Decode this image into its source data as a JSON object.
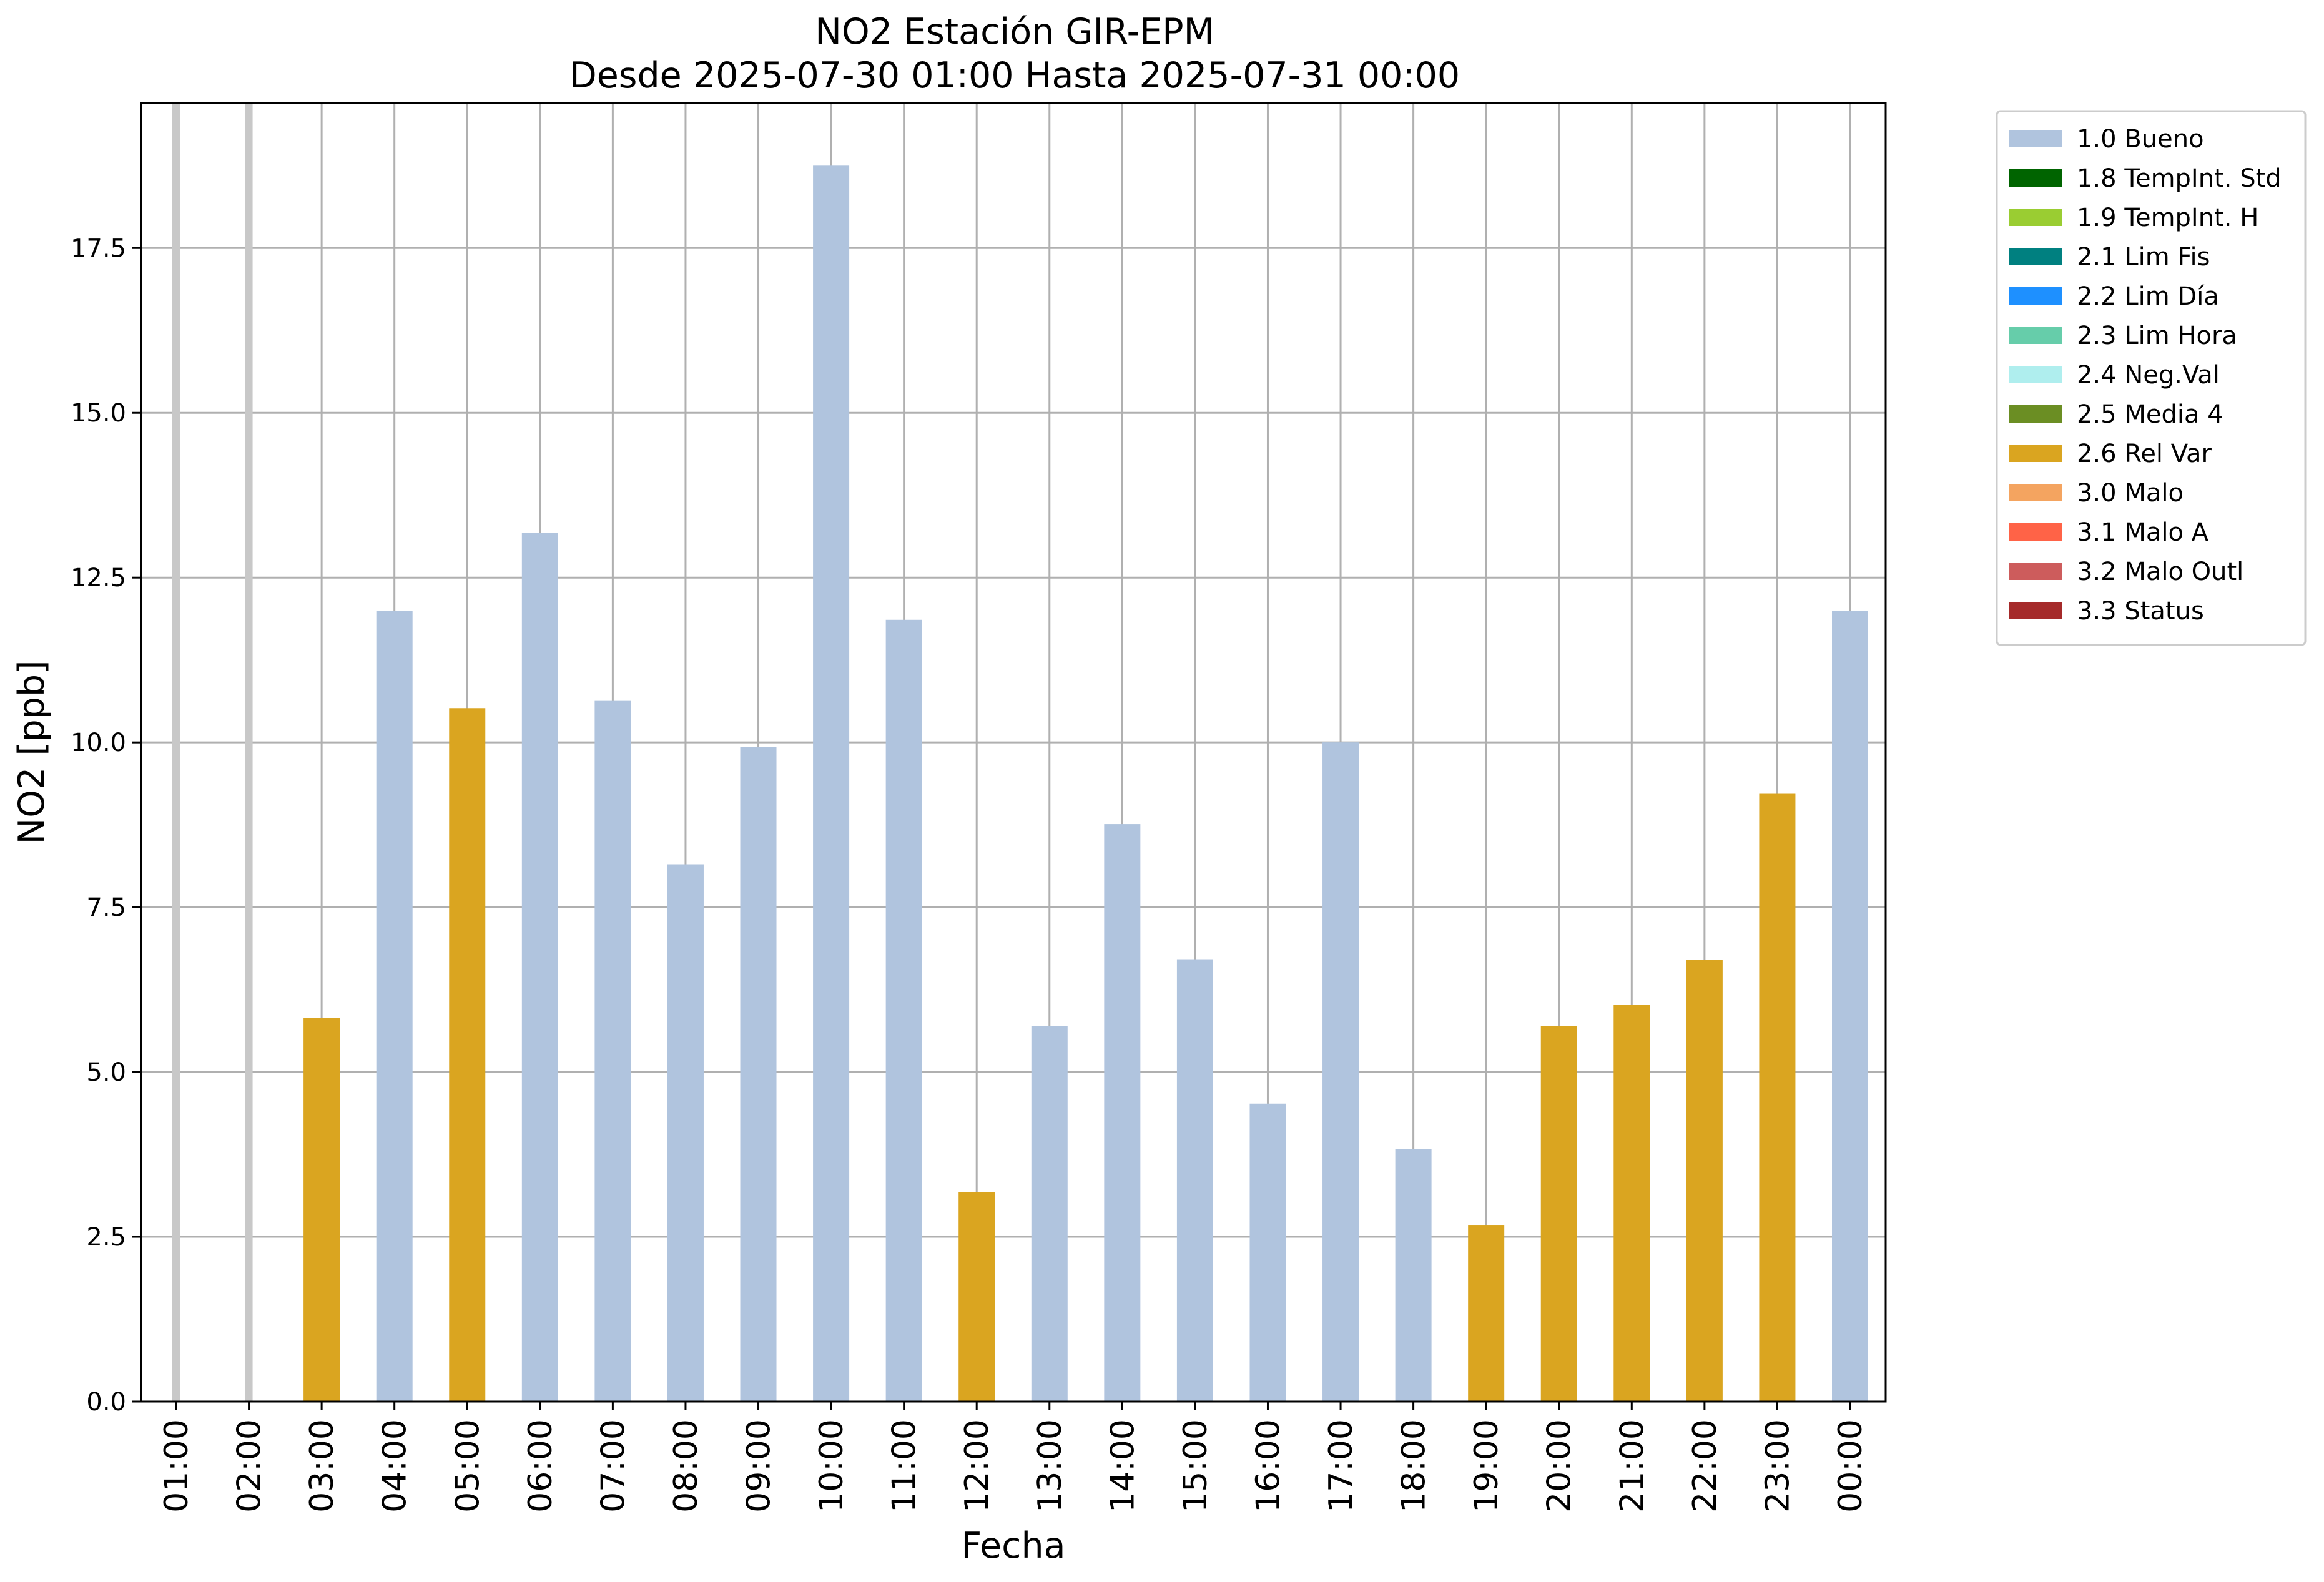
{
  "chart_data": {
    "type": "bar",
    "title": "NO2 Estación GIR-EPM",
    "subtitle": "Desde 2025-07-30 01:00 Hasta 2025-07-31 00:00",
    "xlabel": "Fecha",
    "ylabel": "NO2 [ppb]",
    "ylim": [
      0,
      19.7
    ],
    "yticks": [
      "0.0",
      "2.5",
      "5.0",
      "7.5",
      "10.0",
      "12.5",
      "15.0",
      "17.5"
    ],
    "ytick_values": [
      0,
      2.5,
      5,
      7.5,
      10,
      12.5,
      15,
      17.5
    ],
    "grid": true,
    "legend_position": "outside-top-right",
    "categories": [
      "01:00",
      "02:00",
      "03:00",
      "04:00",
      "05:00",
      "06:00",
      "07:00",
      "08:00",
      "09:00",
      "10:00",
      "11:00",
      "12:00",
      "13:00",
      "14:00",
      "15:00",
      "16:00",
      "17:00",
      "18:00",
      "19:00",
      "20:00",
      "21:00",
      "22:00",
      "23:00",
      "00:00"
    ],
    "values": [
      null,
      null,
      5.82,
      12.0,
      10.52,
      13.18,
      10.63,
      8.15,
      9.93,
      18.75,
      11.86,
      3.18,
      5.7,
      8.76,
      6.71,
      4.52,
      10.0,
      3.83,
      2.68,
      5.7,
      6.02,
      6.7,
      9.22,
      12.0
    ],
    "flags": [
      "missing",
      "missing",
      "2.6 Rel Var",
      "1.0 Bueno",
      "2.6 Rel Var",
      "1.0 Bueno",
      "1.0 Bueno",
      "1.0 Bueno",
      "1.0 Bueno",
      "1.0 Bueno",
      "1.0 Bueno",
      "2.6 Rel Var",
      "1.0 Bueno",
      "1.0 Bueno",
      "1.0 Bueno",
      "1.0 Bueno",
      "1.0 Bueno",
      "1.0 Bueno",
      "2.6 Rel Var",
      "2.6 Rel Var",
      "2.6 Rel Var",
      "2.6 Rel Var",
      "2.6 Rel Var",
      "1.0 Bueno"
    ],
    "missing_marker_color": "#c8c8c8",
    "legend": [
      {
        "label": "1.0 Bueno",
        "color": "#b0c4de"
      },
      {
        "label": "1.8 TempInt. Std",
        "color": "#006400"
      },
      {
        "label": "1.9 TempInt. H",
        "color": "#9acd32"
      },
      {
        "label": "2.1 Lim Fis",
        "color": "#008080"
      },
      {
        "label": "2.2 Lim Día",
        "color": "#1e90ff"
      },
      {
        "label": "2.3 Lim Hora",
        "color": "#66cdaa"
      },
      {
        "label": "2.4 Neg.Val",
        "color": "#afeeee"
      },
      {
        "label": "2.5 Media 4",
        "color": "#6b8e23"
      },
      {
        "label": "2.6 Rel Var",
        "color": "#daa520"
      },
      {
        "label": "3.0 Malo",
        "color": "#f4a460"
      },
      {
        "label": "3.1 Malo A",
        "color": "#ff6347"
      },
      {
        "label": "3.2 Malo Outl",
        "color": "#cd5c5c"
      },
      {
        "label": "3.3 Status",
        "color": "#a52a2a"
      }
    ]
  }
}
